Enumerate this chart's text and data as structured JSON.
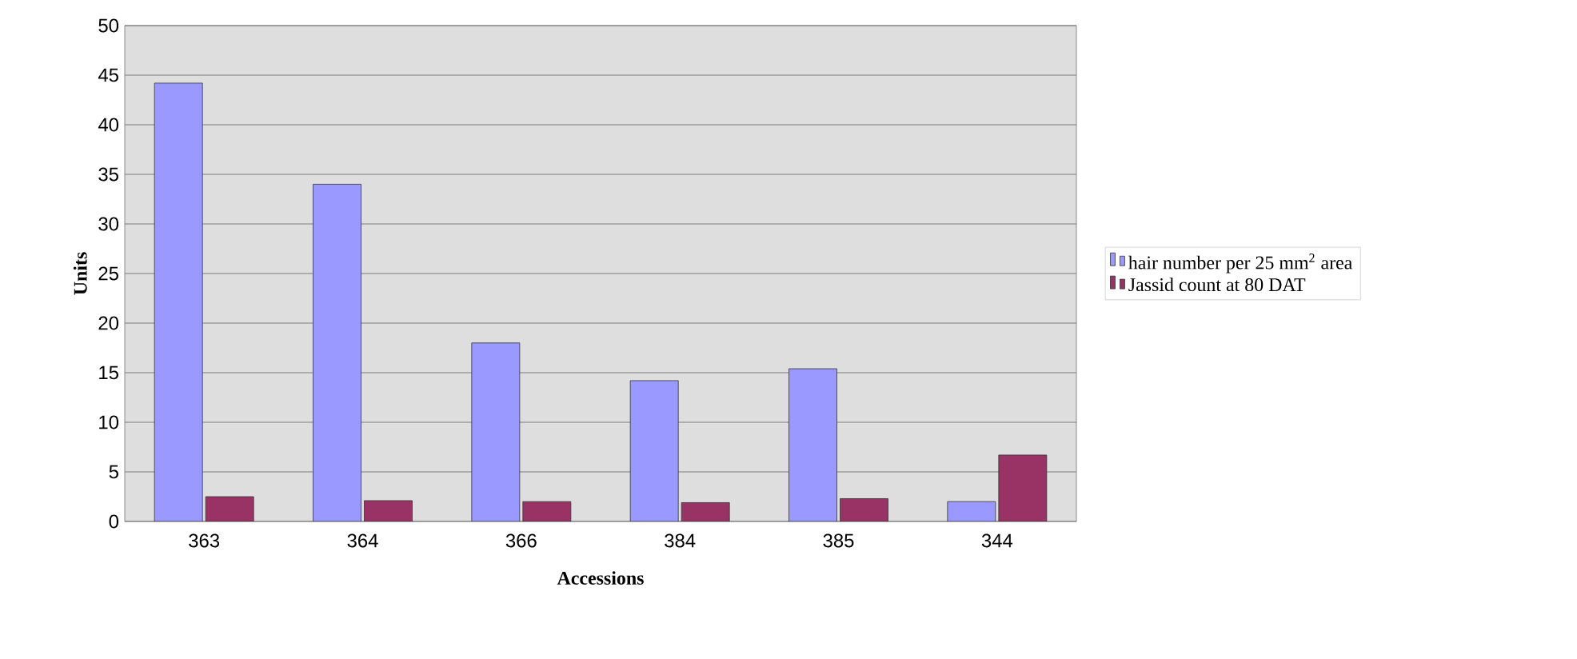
{
  "chart_data": {
    "type": "bar",
    "xlabel": "Accessions",
    "ylabel": "Units",
    "categories": [
      "363",
      "364",
      "366",
      "384",
      "385",
      "344"
    ],
    "series": [
      {
        "name": "hair number per 25 mm$^{2}$ area",
        "color": "#9999ff",
        "values": [
          44.2,
          34,
          18,
          14.2,
          15.4,
          2
        ]
      },
      {
        "name": "Jassid count at 80 DAT",
        "color": "#993366",
        "values": [
          2.5,
          2.1,
          2,
          1.9,
          2.3,
          6.7
        ]
      }
    ],
    "ylim": [
      0,
      50
    ],
    "yticks": [
      0,
      5,
      10,
      15,
      20,
      25,
      30,
      35,
      40,
      45,
      50
    ],
    "grid": "y",
    "legend": "right"
  }
}
